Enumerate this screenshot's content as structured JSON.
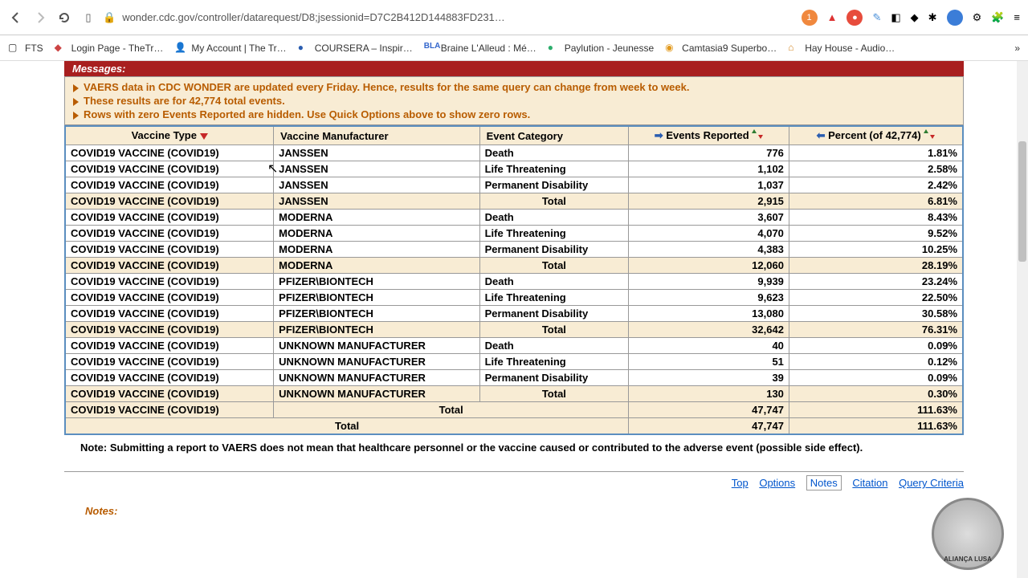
{
  "browser": {
    "url": "wonder.cdc.gov/controller/datarequest/D8;jsessionid=D7C2B412D144883FD231…",
    "icons": {
      "back": "◀",
      "forward": "▶",
      "reload": "⟳",
      "read": "▤",
      "lock": "🔒",
      "shield": "🛡",
      "ext": "⋮"
    }
  },
  "bookmarks": [
    "FTS",
    "Login Page - TheTr…",
    "My Account | The Tr…",
    "COURSERA – Inspir…",
    "Braine L'Alleud : Mé…",
    "Paylution - Jeunesse",
    "Camtasia9 Superbo…",
    "Hay House - Audio…"
  ],
  "messages": {
    "header": "Messages:",
    "lines": [
      "VAERS data in CDC WONDER are updated every Friday. Hence, results for the same query can change from week to week.",
      "These results are for 42,774 total events.",
      "Rows with zero Events Reported are hidden. Use Quick Options above to show zero rows."
    ]
  },
  "table": {
    "headers": {
      "c1": "Vaccine Type",
      "c2": "Vaccine Manufacturer",
      "c3": "Event Category",
      "c4": "Events Reported",
      "c5": "Percent (of 42,774)"
    },
    "rows": [
      {
        "vt": "COVID19 VACCINE (COVID19)",
        "mf": "JANSSEN",
        "cat": "Death",
        "ev": "776",
        "pct": "1.81%",
        "total": false
      },
      {
        "vt": "COVID19 VACCINE (COVID19)",
        "mf": "JANSSEN",
        "cat": "Life Threatening",
        "ev": "1,102",
        "pct": "2.58%",
        "total": false
      },
      {
        "vt": "COVID19 VACCINE (COVID19)",
        "mf": "JANSSEN",
        "cat": "Permanent Disability",
        "ev": "1,037",
        "pct": "2.42%",
        "total": false
      },
      {
        "vt": "COVID19 VACCINE (COVID19)",
        "mf": "JANSSEN",
        "cat": "Total",
        "ev": "2,915",
        "pct": "6.81%",
        "total": true,
        "catspan": 1
      },
      {
        "vt": "COVID19 VACCINE (COVID19)",
        "mf": "MODERNA",
        "cat": "Death",
        "ev": "3,607",
        "pct": "8.43%",
        "total": false
      },
      {
        "vt": "COVID19 VACCINE (COVID19)",
        "mf": "MODERNA",
        "cat": "Life Threatening",
        "ev": "4,070",
        "pct": "9.52%",
        "total": false
      },
      {
        "vt": "COVID19 VACCINE (COVID19)",
        "mf": "MODERNA",
        "cat": "Permanent Disability",
        "ev": "4,383",
        "pct": "10.25%",
        "total": false
      },
      {
        "vt": "COVID19 VACCINE (COVID19)",
        "mf": "MODERNA",
        "cat": "Total",
        "ev": "12,060",
        "pct": "28.19%",
        "total": true,
        "catspan": 1
      },
      {
        "vt": "COVID19 VACCINE (COVID19)",
        "mf": "PFIZER\\BIONTECH",
        "cat": "Death",
        "ev": "9,939",
        "pct": "23.24%",
        "total": false
      },
      {
        "vt": "COVID19 VACCINE (COVID19)",
        "mf": "PFIZER\\BIONTECH",
        "cat": "Life Threatening",
        "ev": "9,623",
        "pct": "22.50%",
        "total": false
      },
      {
        "vt": "COVID19 VACCINE (COVID19)",
        "mf": "PFIZER\\BIONTECH",
        "cat": "Permanent Disability",
        "ev": "13,080",
        "pct": "30.58%",
        "total": false
      },
      {
        "vt": "COVID19 VACCINE (COVID19)",
        "mf": "PFIZER\\BIONTECH",
        "cat": "Total",
        "ev": "32,642",
        "pct": "76.31%",
        "total": true,
        "catspan": 1
      },
      {
        "vt": "COVID19 VACCINE (COVID19)",
        "mf": "UNKNOWN MANUFACTURER",
        "cat": "Death",
        "ev": "40",
        "pct": "0.09%",
        "total": false
      },
      {
        "vt": "COVID19 VACCINE (COVID19)",
        "mf": "UNKNOWN MANUFACTURER",
        "cat": "Life Threatening",
        "ev": "51",
        "pct": "0.12%",
        "total": false
      },
      {
        "vt": "COVID19 VACCINE (COVID19)",
        "mf": "UNKNOWN MANUFACTURER",
        "cat": "Permanent Disability",
        "ev": "39",
        "pct": "0.09%",
        "total": false
      },
      {
        "vt": "COVID19 VACCINE (COVID19)",
        "mf": "UNKNOWN MANUFACTURER",
        "cat": "Total",
        "ev": "130",
        "pct": "0.30%",
        "total": true,
        "catspan": 1
      },
      {
        "vt": "COVID19 VACCINE (COVID19)",
        "mf": "",
        "cat": "Total",
        "ev": "47,747",
        "pct": "111.63%",
        "total": true,
        "mfspan": 2
      },
      {
        "vt": "",
        "mf": "",
        "cat": "Total",
        "ev": "47,747",
        "pct": "111.63%",
        "total": true,
        "grandspan": 3
      }
    ]
  },
  "note": "Note: Submitting a report to VAERS does not mean that healthcare personnel or the vaccine caused or contributed to the adverse event (possible side effect).",
  "footer_links": [
    "Top",
    "Options",
    "Notes",
    "Citation",
    "Query Criteria"
  ],
  "watermark": "ALIANÇA LUSA",
  "notes_heading": "Notes:",
  "colors": {
    "header_bg": "#a81f1f",
    "total_bg": "#f8ecd4",
    "msg_color": "#b85c00",
    "table_border": "#5b8ebf"
  }
}
